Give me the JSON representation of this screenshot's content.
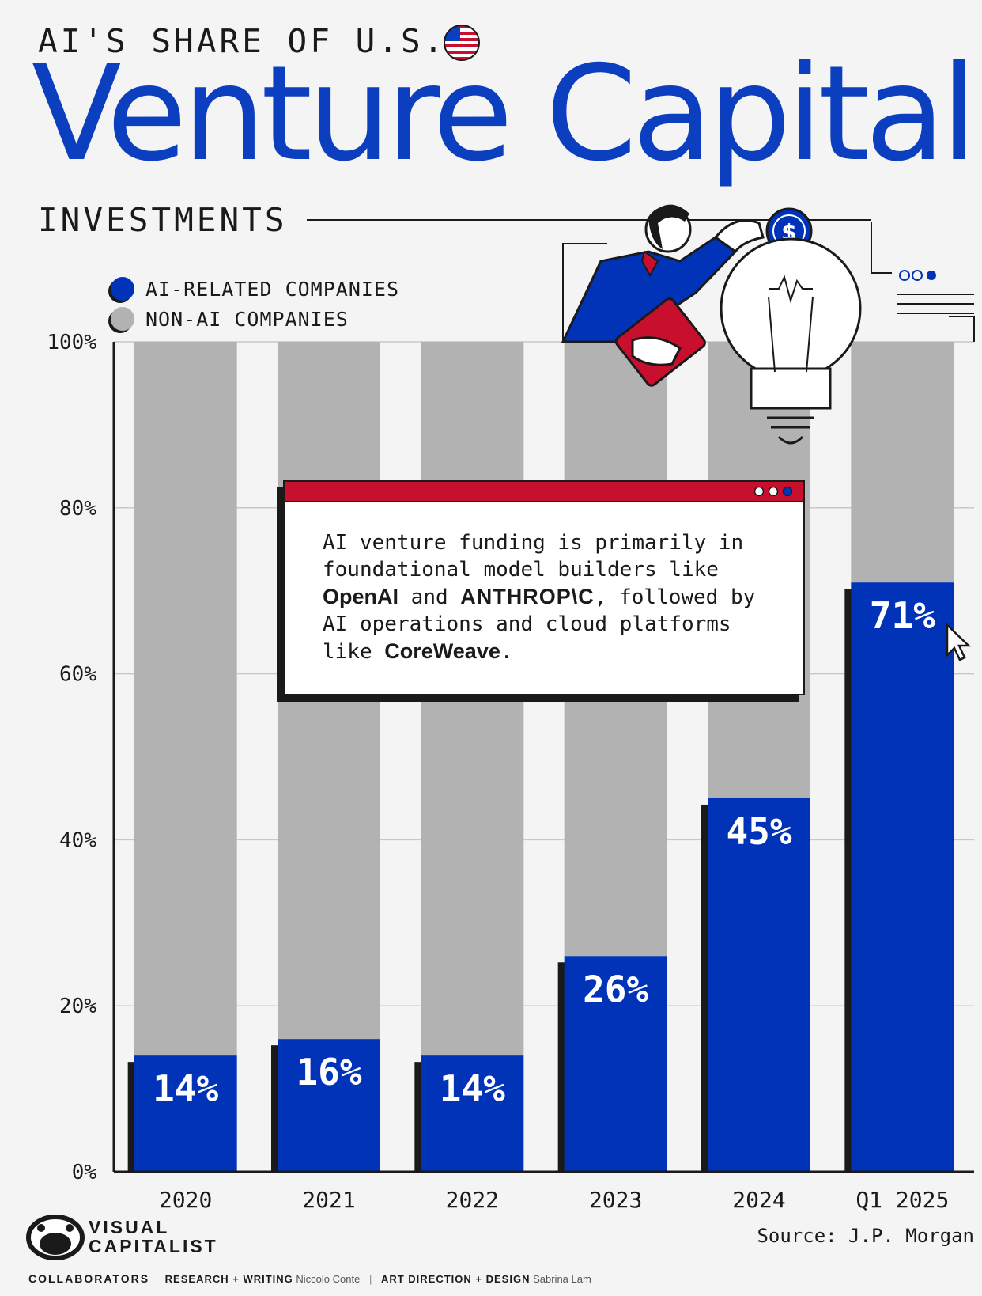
{
  "header": {
    "kicker": "AI'S SHARE OF U.S.",
    "headline": "Venture Capital",
    "subkicker": "INVESTMENTS"
  },
  "legend": {
    "ai_label": "AI-RELATED COMPANIES",
    "non_ai_label": "NON-AI COMPANIES"
  },
  "colors": {
    "ai": "#0033b8",
    "non_ai": "#b2b2b2",
    "accent_red": "#c8102e",
    "headline_blue": "#0b3fbf"
  },
  "chart_data": {
    "type": "bar",
    "stacked": true,
    "categories": [
      "2020",
      "2021",
      "2022",
      "2023",
      "2024",
      "Q1 2025"
    ],
    "series": [
      {
        "name": "AI-RELATED COMPANIES",
        "values": [
          14,
          16,
          14,
          26,
          45,
          71
        ]
      },
      {
        "name": "NON-AI COMPANIES",
        "values": [
          86,
          84,
          86,
          74,
          55,
          29
        ]
      }
    ],
    "data_labels": [
      "14%",
      "16%",
      "14%",
      "26%",
      "45%",
      "71%"
    ],
    "yticks": [
      "0%",
      "20%",
      "40%",
      "60%",
      "80%",
      "100%"
    ],
    "ylim": [
      0,
      100
    ],
    "grid": true,
    "legend_position": "top-left"
  },
  "callout": {
    "line1": "AI venture funding is primarily in",
    "line2": "foundational model builders like",
    "brand_openai": "OpenAI",
    "word_and": "and",
    "brand_anthropic": "ANTHROP\\C",
    "followed_by": ", followed by",
    "line4": "AI operations and cloud platforms",
    "like": "like",
    "brand_coreweave": "CoreWeave",
    "period": "."
  },
  "footer": {
    "brand_line1": "VISUAL",
    "brand_line2": "CAPITALIST",
    "source": "Source: J.P. Morgan",
    "collaborators_label": "COLLABORATORS",
    "research_label": "RESEARCH + WRITING",
    "research_name": "Niccolo Conte",
    "design_label": "ART DIRECTION + DESIGN",
    "design_name": "Sabrina Lam"
  }
}
